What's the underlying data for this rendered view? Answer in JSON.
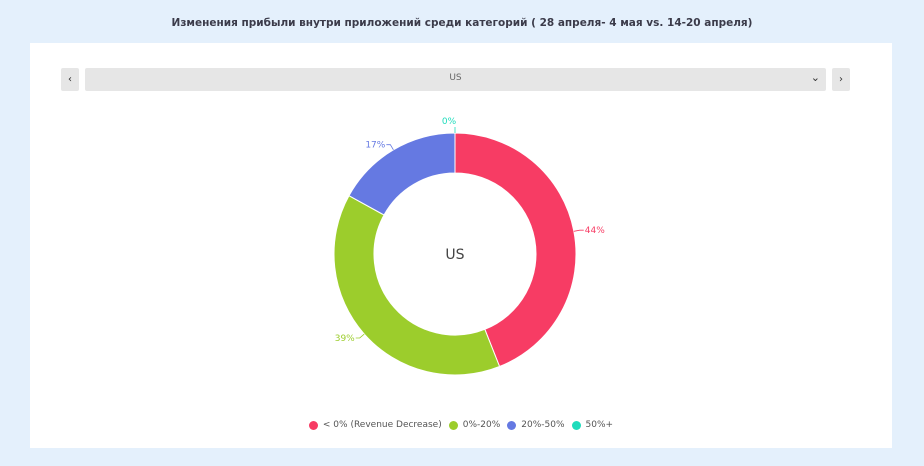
{
  "title": "Изменения прибыли внутри приложений среди категорий  ( 28 апреля- 4 мая vs.  14-20 апреля)",
  "selector": {
    "value": "US",
    "prev_icon": "‹",
    "next_icon": "›",
    "caret_icon": "⌄"
  },
  "colors": {
    "background": "#e4f0fc",
    "panel": "#ffffff"
  },
  "chart_data": {
    "type": "pie",
    "donut": true,
    "center_label": "US",
    "legend_position": "bottom",
    "slices": [
      {
        "label": "< 0% (Revenue Decrease)",
        "value": 44,
        "display": "44%",
        "color": "#f73c64"
      },
      {
        "label": "0%-20%",
        "value": 39,
        "display": "39%",
        "color": "#9ccd2c"
      },
      {
        "label": "20%-50%",
        "value": 17,
        "display": "17%",
        "color": "#6579e2"
      },
      {
        "label": "50%+",
        "value": 0,
        "display": "0%",
        "color": "#1fdcbc"
      }
    ]
  }
}
